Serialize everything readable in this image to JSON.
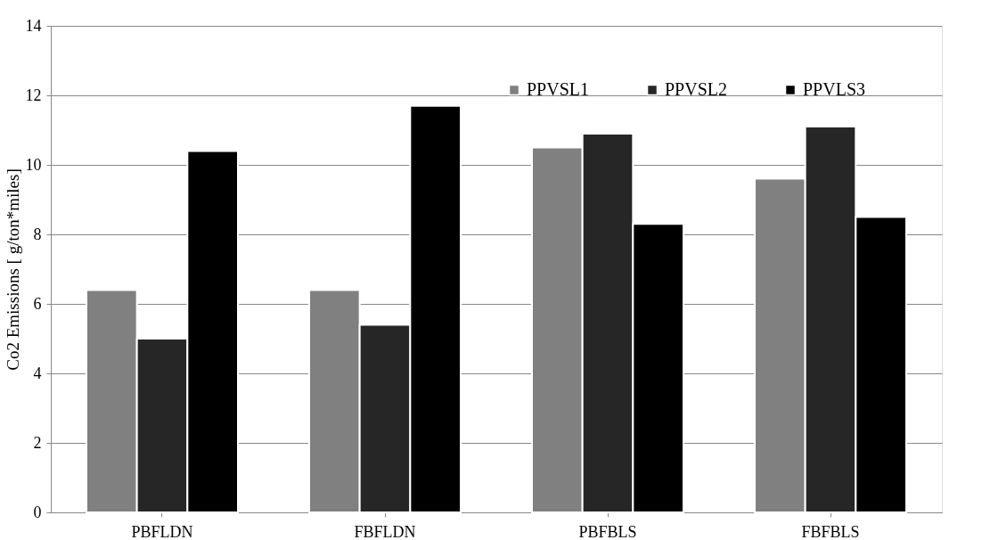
{
  "chart_data": {
    "type": "bar",
    "ylabel": "Co2 Emissions [ g/ton*miles]",
    "categories": [
      "PBFLDN",
      "FBFLDN",
      "PBFBLS",
      "FBFBLS"
    ],
    "series": [
      {
        "name": "PPVSL1",
        "color": "#808080",
        "values": [
          6.4,
          6.4,
          10.5,
          9.6
        ]
      },
      {
        "name": "PPVSL2",
        "color": "#262626",
        "values": [
          5.0,
          5.4,
          10.9,
          11.1
        ]
      },
      {
        "name": "PPVLS3",
        "color": "#000000",
        "values": [
          10.4,
          11.7,
          8.3,
          8.5
        ]
      }
    ],
    "ylim": [
      0,
      14
    ],
    "yticks": [
      0,
      2,
      4,
      6,
      8,
      10,
      12,
      14
    ],
    "grid": "y",
    "legend": "top right"
  }
}
